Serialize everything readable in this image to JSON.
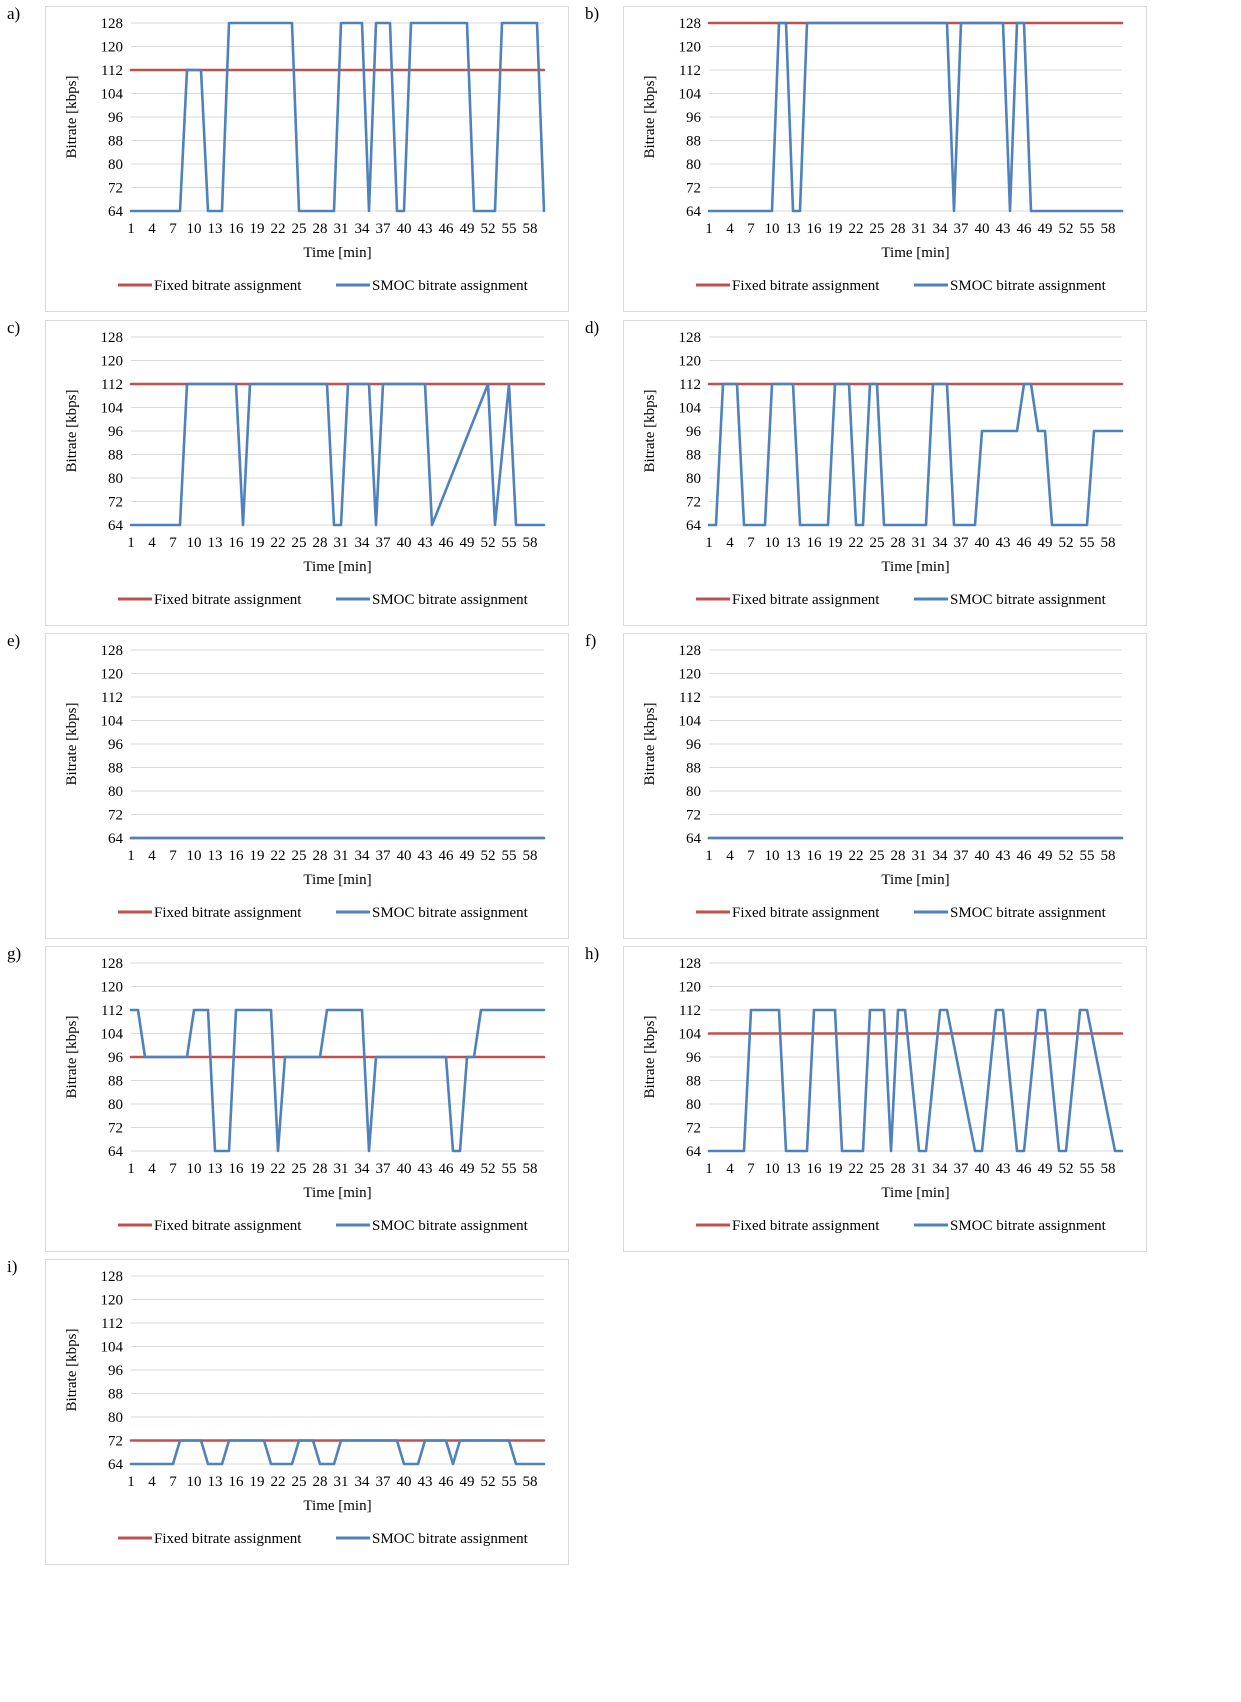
{
  "legend": {
    "fixed": "Fixed bitrate assignment",
    "smoc": "SMOC bitrate assignment"
  },
  "colors": {
    "fixed": "#c0504d",
    "smoc": "#4f81bd",
    "grid": "#d9d9d9",
    "border": "#d9d9d9"
  },
  "chart_data": [
    {
      "panel": "a)",
      "type": "line",
      "xlabel": "Time [min]",
      "ylabel": "Bitrate [kbps]",
      "ylim": [
        64,
        128
      ],
      "yticks": [
        64,
        72,
        80,
        88,
        96,
        104,
        112,
        120,
        128
      ],
      "xlim": [
        1,
        60
      ],
      "xticks": [
        1,
        4,
        7,
        10,
        13,
        16,
        19,
        22,
        25,
        28,
        31,
        34,
        37,
        40,
        43,
        46,
        49,
        52,
        55,
        58
      ],
      "grid": true,
      "legend": "bottom",
      "series": [
        {
          "name": "Fixed bitrate assignment",
          "x": [
            1,
            60
          ],
          "values": [
            112,
            112
          ]
        },
        {
          "name": "SMOC bitrate assignment",
          "x": [
            1,
            8,
            9,
            11,
            12,
            13,
            14,
            15,
            24,
            25,
            30,
            31,
            34,
            35,
            36,
            37,
            38,
            39,
            40,
            41,
            49,
            50,
            53,
            54,
            58,
            59,
            60
          ],
          "values": [
            64,
            64,
            112,
            112,
            64,
            64,
            64,
            128,
            128,
            64,
            64,
            128,
            128,
            64,
            128,
            128,
            128,
            64,
            64,
            128,
            128,
            64,
            64,
            128,
            128,
            128,
            64
          ]
        }
      ]
    },
    {
      "panel": "b)",
      "type": "line",
      "xlabel": "Time [min]",
      "ylabel": "Bitrate [kbps]",
      "ylim": [
        64,
        128
      ],
      "yticks": [
        64,
        72,
        80,
        88,
        96,
        104,
        112,
        120,
        128
      ],
      "xlim": [
        1,
        60
      ],
      "xticks": [
        1,
        4,
        7,
        10,
        13,
        16,
        19,
        22,
        25,
        28,
        31,
        34,
        37,
        40,
        43,
        46,
        49,
        52,
        55,
        58
      ],
      "grid": true,
      "legend": "bottom",
      "series": [
        {
          "name": "Fixed bitrate assignment",
          "x": [
            1,
            60
          ],
          "values": [
            128,
            128
          ]
        },
        {
          "name": "SMOC bitrate assignment",
          "x": [
            1,
            10,
            11,
            12,
            13,
            14,
            15,
            35,
            36,
            37,
            43,
            44,
            45,
            46,
            47,
            60
          ],
          "values": [
            64,
            64,
            128,
            128,
            64,
            64,
            128,
            128,
            64,
            128,
            128,
            64,
            128,
            128,
            64,
            64
          ]
        }
      ]
    },
    {
      "panel": "c)",
      "type": "line",
      "xlabel": "Time [min]",
      "ylabel": "Bitrate [kbps]",
      "ylim": [
        64,
        128
      ],
      "yticks": [
        64,
        72,
        80,
        88,
        96,
        104,
        112,
        120,
        128
      ],
      "xlim": [
        1,
        60
      ],
      "xticks": [
        1,
        4,
        7,
        10,
        13,
        16,
        19,
        22,
        25,
        28,
        31,
        34,
        37,
        40,
        43,
        46,
        49,
        52,
        55,
        58
      ],
      "grid": true,
      "legend": "bottom",
      "series": [
        {
          "name": "Fixed bitrate assignment",
          "x": [
            1,
            60
          ],
          "values": [
            112,
            112
          ]
        },
        {
          "name": "SMOC bitrate assignment",
          "x": [
            1,
            8,
            9,
            16,
            17,
            18,
            29,
            30,
            31,
            32,
            35,
            36,
            37,
            43,
            44,
            52,
            53,
            55,
            56,
            60
          ],
          "values": [
            64,
            64,
            112,
            112,
            64,
            112,
            112,
            64,
            64,
            112,
            112,
            64,
            112,
            112,
            64,
            112,
            64,
            112,
            64,
            64
          ]
        }
      ]
    },
    {
      "panel": "d)",
      "type": "line",
      "xlabel": "Time [min]",
      "ylabel": "Bitrate [kbps]",
      "ylim": [
        64,
        128
      ],
      "yticks": [
        64,
        72,
        80,
        88,
        96,
        104,
        112,
        120,
        128
      ],
      "xlim": [
        1,
        60
      ],
      "xticks": [
        1,
        4,
        7,
        10,
        13,
        16,
        19,
        22,
        25,
        28,
        31,
        34,
        37,
        40,
        43,
        46,
        49,
        52,
        55,
        58
      ],
      "grid": true,
      "legend": "bottom",
      "series": [
        {
          "name": "Fixed bitrate assignment",
          "x": [
            1,
            60
          ],
          "values": [
            112,
            112
          ]
        },
        {
          "name": "SMOC bitrate assignment",
          "x": [
            1,
            2,
            3,
            5,
            6,
            9,
            10,
            13,
            14,
            18,
            19,
            21,
            22,
            23,
            24,
            25,
            26,
            32,
            33,
            35,
            36,
            39,
            40,
            45,
            46,
            47,
            48,
            49,
            50,
            55,
            56,
            60
          ],
          "values": [
            64,
            64,
            112,
            112,
            64,
            64,
            112,
            112,
            64,
            64,
            112,
            112,
            64,
            64,
            112,
            112,
            64,
            64,
            112,
            112,
            64,
            64,
            96,
            96,
            112,
            112,
            96,
            96,
            64,
            64,
            96,
            96
          ]
        }
      ]
    },
    {
      "panel": "e)",
      "type": "line",
      "xlabel": "Time [min]",
      "ylabel": "Bitrate [kbps]",
      "ylim": [
        64,
        128
      ],
      "yticks": [
        64,
        72,
        80,
        88,
        96,
        104,
        112,
        120,
        128
      ],
      "xlim": [
        1,
        60
      ],
      "xticks": [
        1,
        4,
        7,
        10,
        13,
        16,
        19,
        22,
        25,
        28,
        31,
        34,
        37,
        40,
        43,
        46,
        49,
        52,
        55,
        58
      ],
      "grid": true,
      "legend": "bottom",
      "series": [
        {
          "name": "Fixed bitrate assignment",
          "x": [
            1,
            60
          ],
          "values": [
            64,
            64
          ]
        },
        {
          "name": "SMOC bitrate assignment",
          "x": [
            1,
            60
          ],
          "values": [
            64,
            64
          ]
        }
      ]
    },
    {
      "panel": "f)",
      "type": "line",
      "xlabel": "Time [min]",
      "ylabel": "Bitrate [kbps]",
      "ylim": [
        64,
        128
      ],
      "yticks": [
        64,
        72,
        80,
        88,
        96,
        104,
        112,
        120,
        128
      ],
      "xlim": [
        1,
        60
      ],
      "xticks": [
        1,
        4,
        7,
        10,
        13,
        16,
        19,
        22,
        25,
        28,
        31,
        34,
        37,
        40,
        43,
        46,
        49,
        52,
        55,
        58
      ],
      "grid": true,
      "legend": "bottom",
      "series": [
        {
          "name": "Fixed bitrate assignment",
          "x": [
            1,
            60
          ],
          "values": [
            64,
            64
          ]
        },
        {
          "name": "SMOC bitrate assignment",
          "x": [
            1,
            60
          ],
          "values": [
            64,
            64
          ]
        }
      ]
    },
    {
      "panel": "g)",
      "type": "line",
      "xlabel": "Time [min]",
      "ylabel": "Bitrate [kbps]",
      "ylim": [
        64,
        128
      ],
      "yticks": [
        64,
        72,
        80,
        88,
        96,
        104,
        112,
        120,
        128
      ],
      "xlim": [
        1,
        60
      ],
      "xticks": [
        1,
        4,
        7,
        10,
        13,
        16,
        19,
        22,
        25,
        28,
        31,
        34,
        37,
        40,
        43,
        46,
        49,
        52,
        55,
        58
      ],
      "grid": true,
      "legend": "bottom",
      "series": [
        {
          "name": "Fixed bitrate assignment",
          "x": [
            1,
            60
          ],
          "values": [
            96,
            96
          ]
        },
        {
          "name": "SMOC bitrate assignment",
          "x": [
            1,
            2,
            3,
            9,
            10,
            12,
            13,
            15,
            16,
            21,
            22,
            23,
            28,
            29,
            34,
            35,
            36,
            46,
            47,
            48,
            49,
            50,
            51,
            60
          ],
          "values": [
            112,
            112,
            96,
            96,
            112,
            112,
            64,
            64,
            112,
            112,
            64,
            96,
            96,
            112,
            112,
            64,
            96,
            96,
            64,
            64,
            96,
            96,
            112,
            112
          ]
        }
      ]
    },
    {
      "panel": "h)",
      "type": "line",
      "xlabel": "Time [min]",
      "ylabel": "Bitrate [kbps]",
      "ylim": [
        64,
        128
      ],
      "yticks": [
        64,
        72,
        80,
        88,
        96,
        104,
        112,
        120,
        128
      ],
      "xlim": [
        1,
        60
      ],
      "xticks": [
        1,
        4,
        7,
        10,
        13,
        16,
        19,
        22,
        25,
        28,
        31,
        34,
        37,
        40,
        43,
        46,
        49,
        52,
        55,
        58
      ],
      "grid": true,
      "legend": "bottom",
      "series": [
        {
          "name": "Fixed bitrate assignment",
          "x": [
            1,
            60
          ],
          "values": [
            104,
            104
          ]
        },
        {
          "name": "SMOC bitrate assignment",
          "x": [
            1,
            6,
            7,
            11,
            12,
            15,
            16,
            19,
            20,
            23,
            24,
            26,
            27,
            28,
            29,
            31,
            32,
            34,
            35,
            39,
            40,
            42,
            43,
            45,
            46,
            48,
            49,
            51,
            52,
            54,
            55,
            59,
            60
          ],
          "values": [
            64,
            64,
            112,
            112,
            64,
            64,
            112,
            112,
            64,
            64,
            112,
            112,
            64,
            112,
            112,
            64,
            64,
            112,
            112,
            64,
            64,
            112,
            112,
            64,
            64,
            112,
            112,
            64,
            64,
            112,
            112,
            64,
            64
          ]
        }
      ]
    },
    {
      "panel": "i)",
      "type": "line",
      "xlabel": "Time [min]",
      "ylabel": "Bitrate [kbps]",
      "ylim": [
        64,
        128
      ],
      "yticks": [
        64,
        72,
        80,
        88,
        96,
        104,
        112,
        120,
        128
      ],
      "xlim": [
        1,
        60
      ],
      "xticks": [
        1,
        4,
        7,
        10,
        13,
        16,
        19,
        22,
        25,
        28,
        31,
        34,
        37,
        40,
        43,
        46,
        49,
        52,
        55,
        58
      ],
      "grid": true,
      "legend": "bottom",
      "series": [
        {
          "name": "Fixed bitrate assignment",
          "x": [
            1,
            60
          ],
          "values": [
            72,
            72
          ]
        },
        {
          "name": "SMOC bitrate assignment",
          "x": [
            1,
            7,
            8,
            11,
            12,
            14,
            15,
            20,
            21,
            24,
            25,
            27,
            28,
            30,
            31,
            39,
            40,
            42,
            43,
            46,
            47,
            48,
            55,
            56,
            60
          ],
          "values": [
            64,
            64,
            72,
            72,
            64,
            64,
            72,
            72,
            64,
            64,
            72,
            72,
            64,
            64,
            72,
            72,
            64,
            64,
            72,
            72,
            64,
            72,
            72,
            64,
            64
          ]
        }
      ]
    }
  ]
}
